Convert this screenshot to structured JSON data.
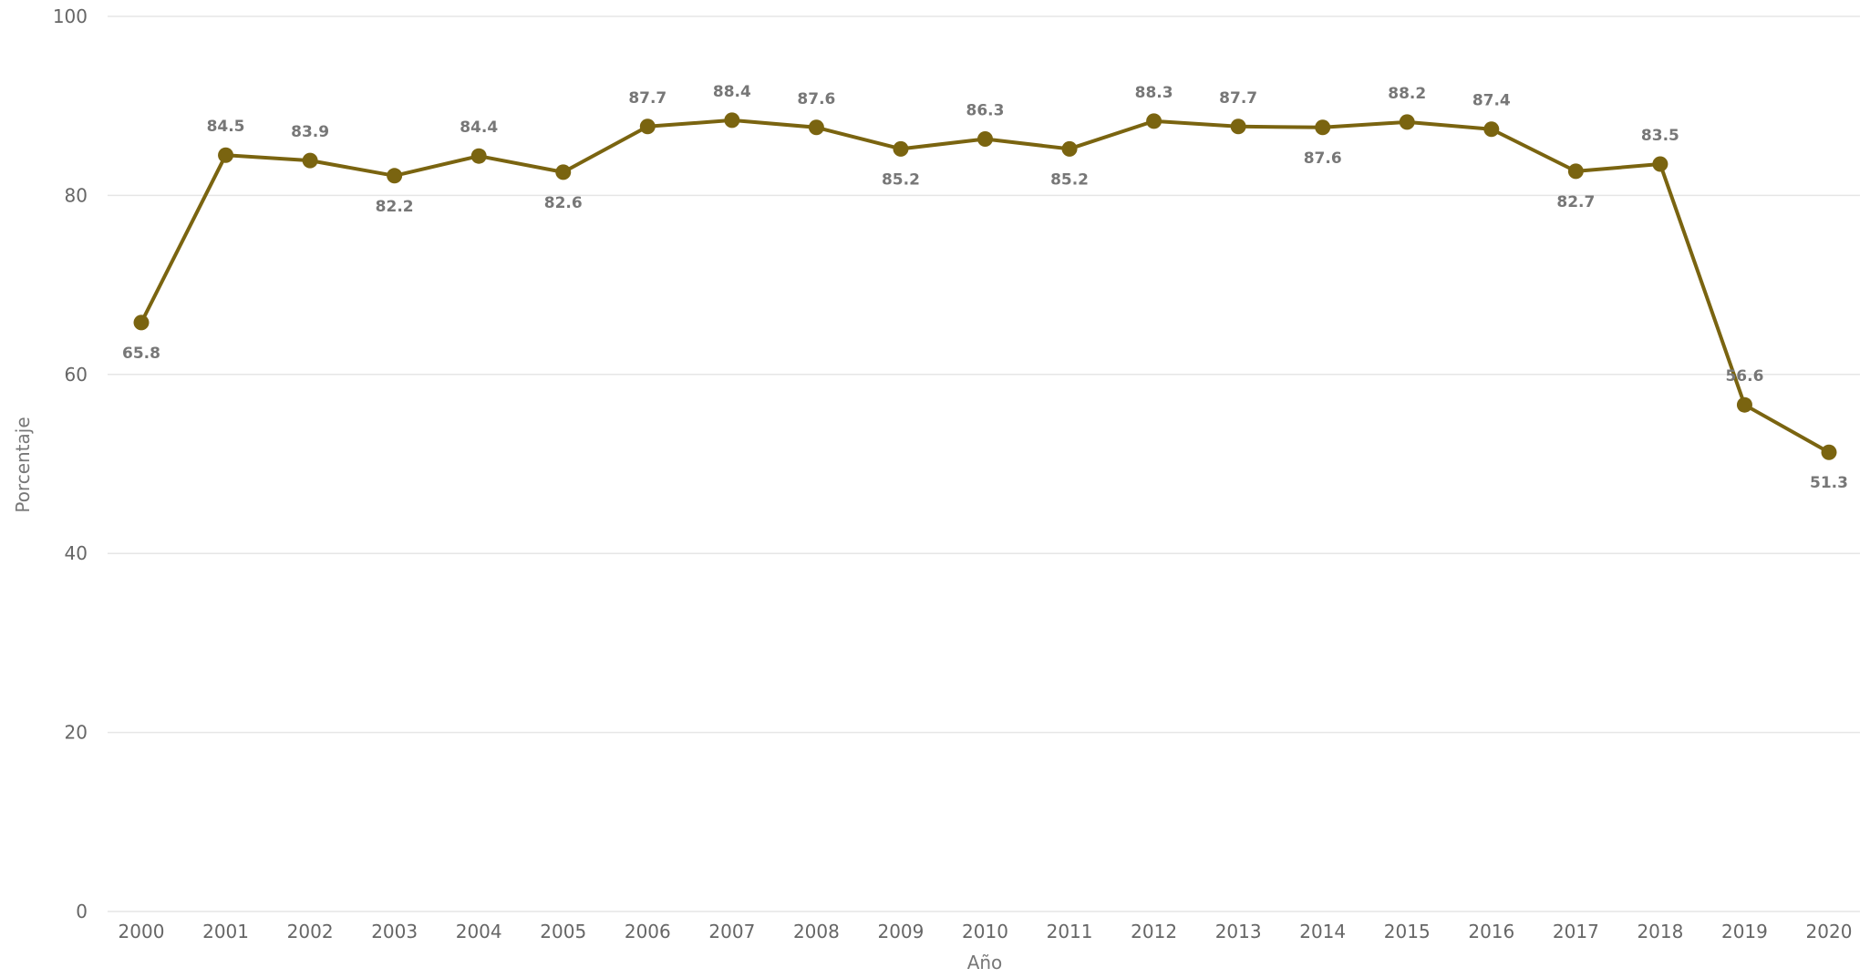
{
  "chart_data": {
    "type": "line",
    "title": "",
    "xlabel": "Año",
    "ylabel": "Porcentaje",
    "ylim": [
      0,
      100
    ],
    "yticks": [
      0,
      20,
      40,
      60,
      80,
      100
    ],
    "grid": true,
    "legend": "none",
    "categories": [
      "2000",
      "2001",
      "2002",
      "2003",
      "2004",
      "2005",
      "2006",
      "2007",
      "2008",
      "2009",
      "2010",
      "2011",
      "2012",
      "2013",
      "2014",
      "2015",
      "2016",
      "2017",
      "2018",
      "2019",
      "2020"
    ],
    "series": [
      {
        "color": "#7a6410",
        "values": [
          65.8,
          84.5,
          83.9,
          82.2,
          84.4,
          82.6,
          87.7,
          88.4,
          87.6,
          85.2,
          86.3,
          85.2,
          88.3,
          87.7,
          87.6,
          88.2,
          87.4,
          82.7,
          83.5,
          56.6,
          51.3
        ],
        "labels": [
          "65.8",
          "84.5",
          "83.9",
          "82.2",
          "84.4",
          "82.6",
          "87.7",
          "88.4",
          "87.6",
          "85.2",
          "86.3",
          "85.2",
          "88.3",
          "87.7",
          "87.6",
          "88.2",
          "87.4",
          "82.7",
          "83.5",
          "56.6",
          "51.3"
        ],
        "label_positions": [
          "below",
          "above",
          "above",
          "below",
          "above",
          "below",
          "above",
          "above",
          "above",
          "below",
          "above",
          "below",
          "above",
          "above",
          "below",
          "above",
          "above",
          "below",
          "above",
          "above",
          "below"
        ]
      }
    ]
  }
}
